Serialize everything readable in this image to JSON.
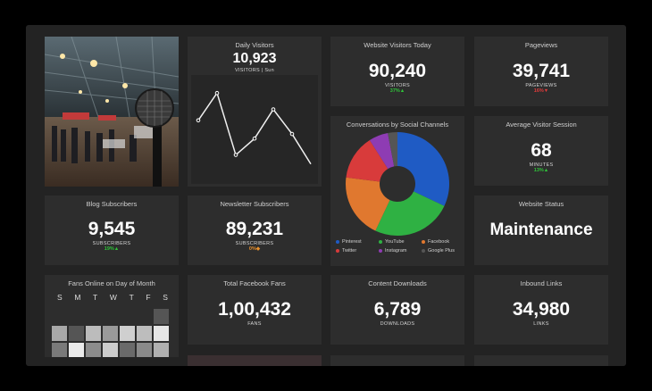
{
  "daily_visitors": {
    "title": "Daily Visitors",
    "value": "10,923",
    "sub": "VISITORS | Sun",
    "points": [
      60,
      90,
      22,
      40,
      72,
      45,
      12
    ]
  },
  "website_visitors": {
    "title": "Website Visitors Today",
    "value": "90,240",
    "unit": "VISITORS",
    "delta": "37%▲"
  },
  "pageviews": {
    "title": "Pageviews",
    "value": "39,741",
    "unit": "PAGEVIEWS",
    "delta": "16%▼"
  },
  "conversations": {
    "title": "Conversations by Social Channels",
    "legend": [
      {
        "name": "Pinterest",
        "color": "#1f5bc4"
      },
      {
        "name": "YouTube",
        "color": "#2fb143"
      },
      {
        "name": "Facebook",
        "color": "#e0782f"
      },
      {
        "name": "Twitter",
        "color": "#d83b3b"
      },
      {
        "name": "Instagram",
        "color": "#8e3cb3"
      },
      {
        "name": "Google Plus",
        "color": "#555555"
      }
    ],
    "values": [
      32,
      25,
      20,
      14,
      6,
      3
    ]
  },
  "avg_session": {
    "title": "Average Visitor Session",
    "value": "68",
    "unit": "MINUTES",
    "delta": "13%▲"
  },
  "blog": {
    "title": "Blog Subscribers",
    "value": "9,545",
    "unit": "SUBSCRIBERS",
    "delta": "19%▲"
  },
  "newsletter": {
    "title": "Newsletter Subscribers",
    "value": "89,231",
    "unit": "SUBSCRIBERS",
    "delta": "0%◆"
  },
  "status": {
    "title": "Website Status",
    "value": "Maintenance"
  },
  "fans_online": {
    "title": "Fans Online on Day of Month",
    "days": [
      "S",
      "M",
      "T",
      "W",
      "T",
      "F",
      "S"
    ]
  },
  "facebook_fans": {
    "title": "Total Facebook Fans",
    "value": "1,00,432",
    "unit": "FANS"
  },
  "downloads": {
    "title": "Content Downloads",
    "value": "6,789",
    "unit": "DOWNLOADS"
  },
  "inbound": {
    "title": "Inbound Links",
    "value": "34,980",
    "unit": "LINKS"
  }
}
